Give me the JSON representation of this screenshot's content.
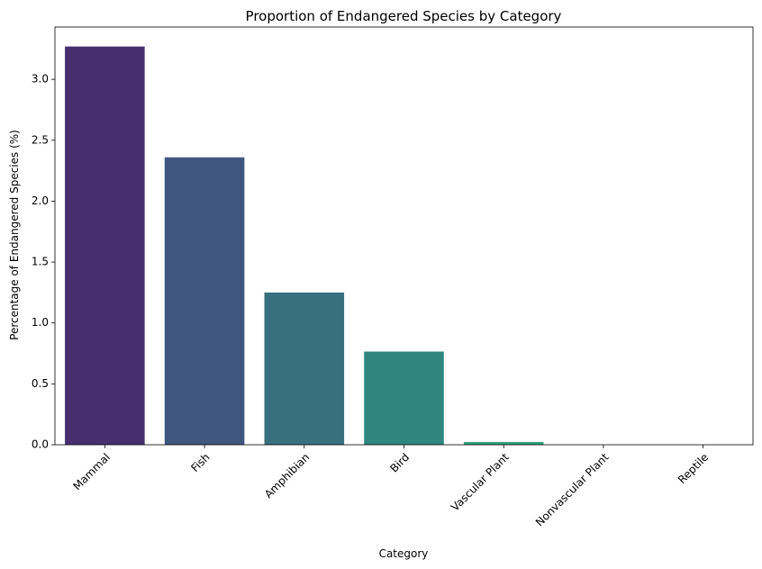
{
  "chart_data": {
    "type": "bar",
    "title": "Proportion of Endangered Species by Category",
    "xlabel": "Category",
    "ylabel": "Percentage of Endangered Species (%)",
    "categories": [
      "Mammal",
      "Fish",
      "Amphibian",
      "Bird",
      "Vascular Plant",
      "Nonvascular Plant",
      "Reptile"
    ],
    "values": [
      3.27,
      2.36,
      1.25,
      0.765,
      0.023,
      0.0,
      0.0
    ],
    "colors": [
      "#472f6f",
      "#42577f",
      "#38707f",
      "#2e867e",
      "#2ea37c",
      "#5dbb66",
      "#9dd94b"
    ],
    "ylim": [
      0,
      3.43
    ],
    "yticks": [
      0.0,
      0.5,
      1.0,
      1.5,
      2.0,
      2.5,
      3.0
    ],
    "ytick_labels": [
      "0.0",
      "0.5",
      "1.0",
      "1.5",
      "2.0",
      "2.5",
      "3.0"
    ],
    "grid": false,
    "legend": "none"
  }
}
